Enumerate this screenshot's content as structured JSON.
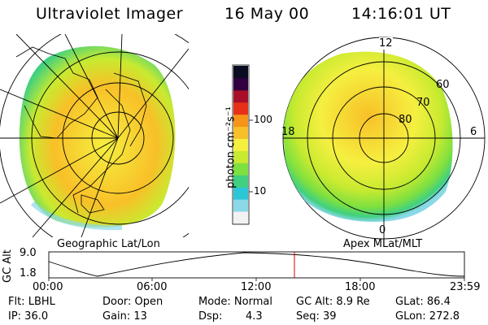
{
  "header": {
    "instrument": "Ultraviolet Imager",
    "date": "16 May 00",
    "time": "14:16:01 UT"
  },
  "colorbar": {
    "unit_label": "photon cm⁻²s⁻¹",
    "ticks": [
      "100",
      "10"
    ],
    "scale": "log"
  },
  "left_map": {
    "label": "Geographic Lat/Lon"
  },
  "right_map": {
    "label": "Apex MLat/MLT",
    "mlt_labels": [
      "12",
      "18",
      "6",
      "0"
    ],
    "lat_labels": [
      "60",
      "70",
      "80"
    ]
  },
  "altitude_plot": {
    "ylabel": "GC Alt",
    "yticks": [
      "9.0",
      "1.8"
    ],
    "xticks": [
      "00:00",
      "06:00",
      "12:00",
      "18:00",
      "23:59"
    ],
    "current_time_color": "#e00000"
  },
  "info": {
    "filter": "Flt: LBHL",
    "ip": "IP: 36.0",
    "door": "Door: Open",
    "gain": "Gain: 13",
    "mode": "Mode: Normal",
    "dsp_label": "Dsp:",
    "dsp_value": "4.3",
    "gc_alt": "GC Alt: 8.9 Re",
    "seq": "Seq: 39",
    "glat": "GLat:  86.4",
    "glon": "GLon: 272.8"
  },
  "colors": {
    "colorbar": [
      "#f2f2f2",
      "#8ad8e8",
      "#2cc6d6",
      "#40d080",
      "#7ee040",
      "#c8ea30",
      "#f5ef40",
      "#f8c028",
      "#f59418",
      "#e83018",
      "#a8102a",
      "#300040",
      "#0a0a20"
    ]
  }
}
